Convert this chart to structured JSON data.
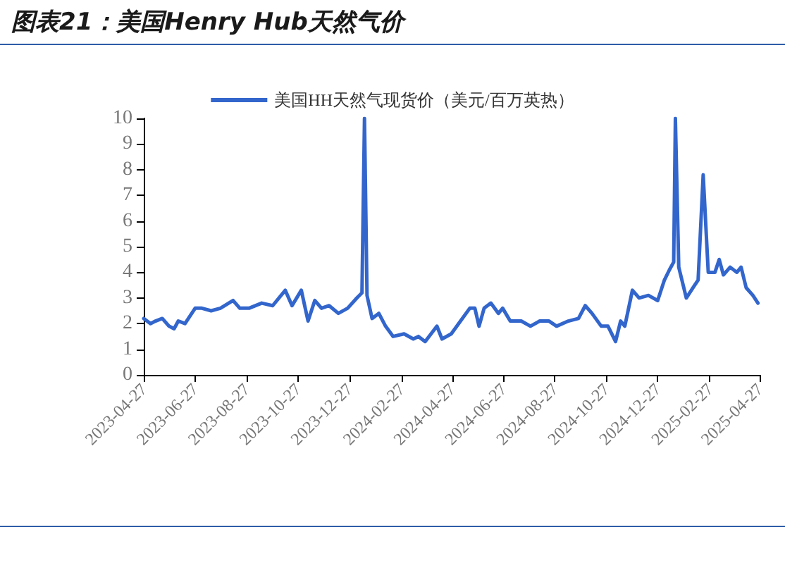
{
  "chart_data": {
    "type": "line",
    "title": "图表21：美国Henry Hub天然气价",
    "x": [
      "2023-04-27",
      "2023-05-05",
      "2023-05-11",
      "2023-05-19",
      "2023-05-27",
      "2023-06-02",
      "2023-06-07",
      "2023-06-15",
      "2023-06-27",
      "2023-07-05",
      "2023-07-16",
      "2023-07-27",
      "2023-08-11",
      "2023-08-19",
      "2023-08-30",
      "2023-09-14",
      "2023-09-27",
      "2023-10-12",
      "2023-10-20",
      "2023-10-31",
      "2023-11-08",
      "2023-11-16",
      "2023-11-24",
      "2023-12-03",
      "2023-12-14",
      "2023-12-25",
      "2024-01-05",
      "2024-01-11",
      "2024-01-14",
      "2024-01-17",
      "2024-01-23",
      "2024-01-31",
      "2024-02-08",
      "2024-02-17",
      "2024-03-01",
      "2024-03-12",
      "2024-03-18",
      "2024-03-26",
      "2024-04-09",
      "2024-04-15",
      "2024-04-26",
      "2024-05-07",
      "2024-05-18",
      "2024-05-24",
      "2024-05-29",
      "2024-06-04",
      "2024-06-12",
      "2024-06-21",
      "2024-06-26",
      "2024-07-05",
      "2024-07-18",
      "2024-07-29",
      "2024-08-09",
      "2024-08-20",
      "2024-08-29",
      "2024-09-12",
      "2024-09-24",
      "2024-10-02",
      "2024-10-10",
      "2024-10-21",
      "2024-10-29",
      "2024-11-07",
      "2024-11-13",
      "2024-11-18",
      "2024-11-27",
      "2024-12-05",
      "2024-12-16",
      "2024-12-27",
      "2025-01-04",
      "2025-01-10",
      "2025-01-15",
      "2025-01-17",
      "2025-01-21",
      "2025-01-30",
      "2025-02-07",
      "2025-02-13",
      "2025-02-19",
      "2025-02-25",
      "2025-03-05",
      "2025-03-10",
      "2025-03-15",
      "2025-03-23",
      "2025-03-31",
      "2025-04-05",
      "2025-04-11",
      "2025-04-19",
      "2025-04-25"
    ],
    "series": [
      {
        "name": "美国HH天然气现货价（美元/百万英热）",
        "color": "#3366cc",
        "values": [
          2.2,
          2.0,
          2.1,
          2.2,
          1.9,
          1.8,
          2.1,
          2.0,
          2.6,
          2.6,
          2.5,
          2.6,
          2.9,
          2.6,
          2.6,
          2.8,
          2.7,
          3.3,
          2.7,
          3.3,
          2.1,
          2.9,
          2.6,
          2.7,
          2.4,
          2.6,
          3.0,
          3.2,
          10,
          3.1,
          2.2,
          2.4,
          1.9,
          1.5,
          1.6,
          1.4,
          1.5,
          1.3,
          1.9,
          1.4,
          1.6,
          2.1,
          2.6,
          2.6,
          1.9,
          2.6,
          2.8,
          2.4,
          2.6,
          2.1,
          2.1,
          1.9,
          2.1,
          2.1,
          1.9,
          2.1,
          2.2,
          2.7,
          2.4,
          1.9,
          1.9,
          1.3,
          2.1,
          1.9,
          3.3,
          3.0,
          3.1,
          2.9,
          3.7,
          4.1,
          4.4,
          10,
          4.2,
          3.0,
          3.4,
          3.7,
          7.8,
          4.0,
          4.0,
          4.5,
          3.9,
          4.2,
          4.0,
          4.2,
          3.4,
          3.1,
          2.8
        ]
      }
    ],
    "xlim": [
      "2023-04-27",
      "2025-04-27"
    ],
    "xticks": [
      "2023-04-27",
      "2023-06-27",
      "2023-08-27",
      "2023-10-27",
      "2023-12-27",
      "2024-02-27",
      "2024-04-27",
      "2024-06-27",
      "2024-08-27",
      "2024-10-27",
      "2024-12-27",
      "2025-02-27",
      "2025-04-27"
    ],
    "ylim": [
      0,
      10
    ],
    "yticks": [
      0,
      1,
      2,
      3,
      4,
      5,
      6,
      7,
      8,
      9,
      10
    ],
    "grid": false,
    "legend": "top",
    "marker": "none",
    "line_style": "solid"
  }
}
